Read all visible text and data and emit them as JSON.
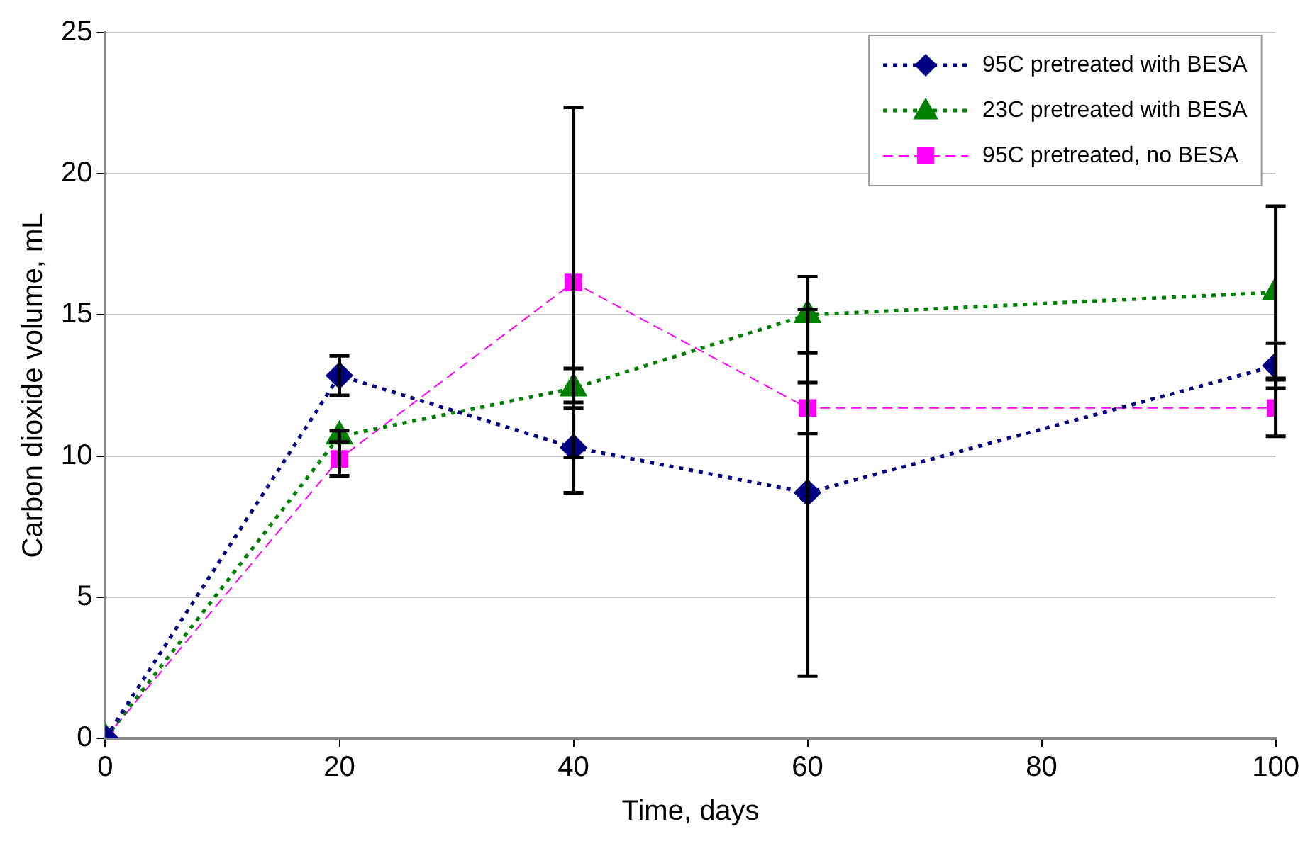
{
  "chart_data": {
    "type": "line",
    "xlabel": "Time, days",
    "ylabel": "Carbon dioxide volume, mL",
    "x": [
      0,
      20,
      40,
      60,
      100
    ],
    "xlim": [
      0,
      100
    ],
    "xticks": [
      0,
      20,
      40,
      60,
      80,
      100
    ],
    "ylim": [
      0,
      25
    ],
    "yticks": [
      0,
      5,
      10,
      15,
      20,
      25
    ],
    "grid": "y",
    "legend": "top right",
    "series": [
      {
        "name": "95C pretreated with BESA",
        "color": "#000080",
        "marker": "diamond",
        "line_style": "dotted",
        "values": [
          0,
          12.85,
          10.3,
          8.7,
          13.2
        ],
        "errors": [
          null,
          0.7,
          1.6,
          6.5,
          0.8
        ]
      },
      {
        "name": "23C pretreated with BESA",
        "color": "#008000",
        "marker": "triangle",
        "line_style": "dotted",
        "values": [
          0,
          10.7,
          12.4,
          15.0,
          15.8
        ],
        "errors": [
          null,
          0.2,
          0.7,
          1.35,
          3.05
        ]
      },
      {
        "name": "95C pretreated, no BESA",
        "color": "#ff00ff",
        "marker": "square",
        "line_style": "dashed",
        "values": [
          0,
          9.9,
          16.15,
          11.7,
          11.7
        ],
        "errors": [
          null,
          0.6,
          6.2,
          0.9,
          1.0
        ]
      }
    ]
  }
}
